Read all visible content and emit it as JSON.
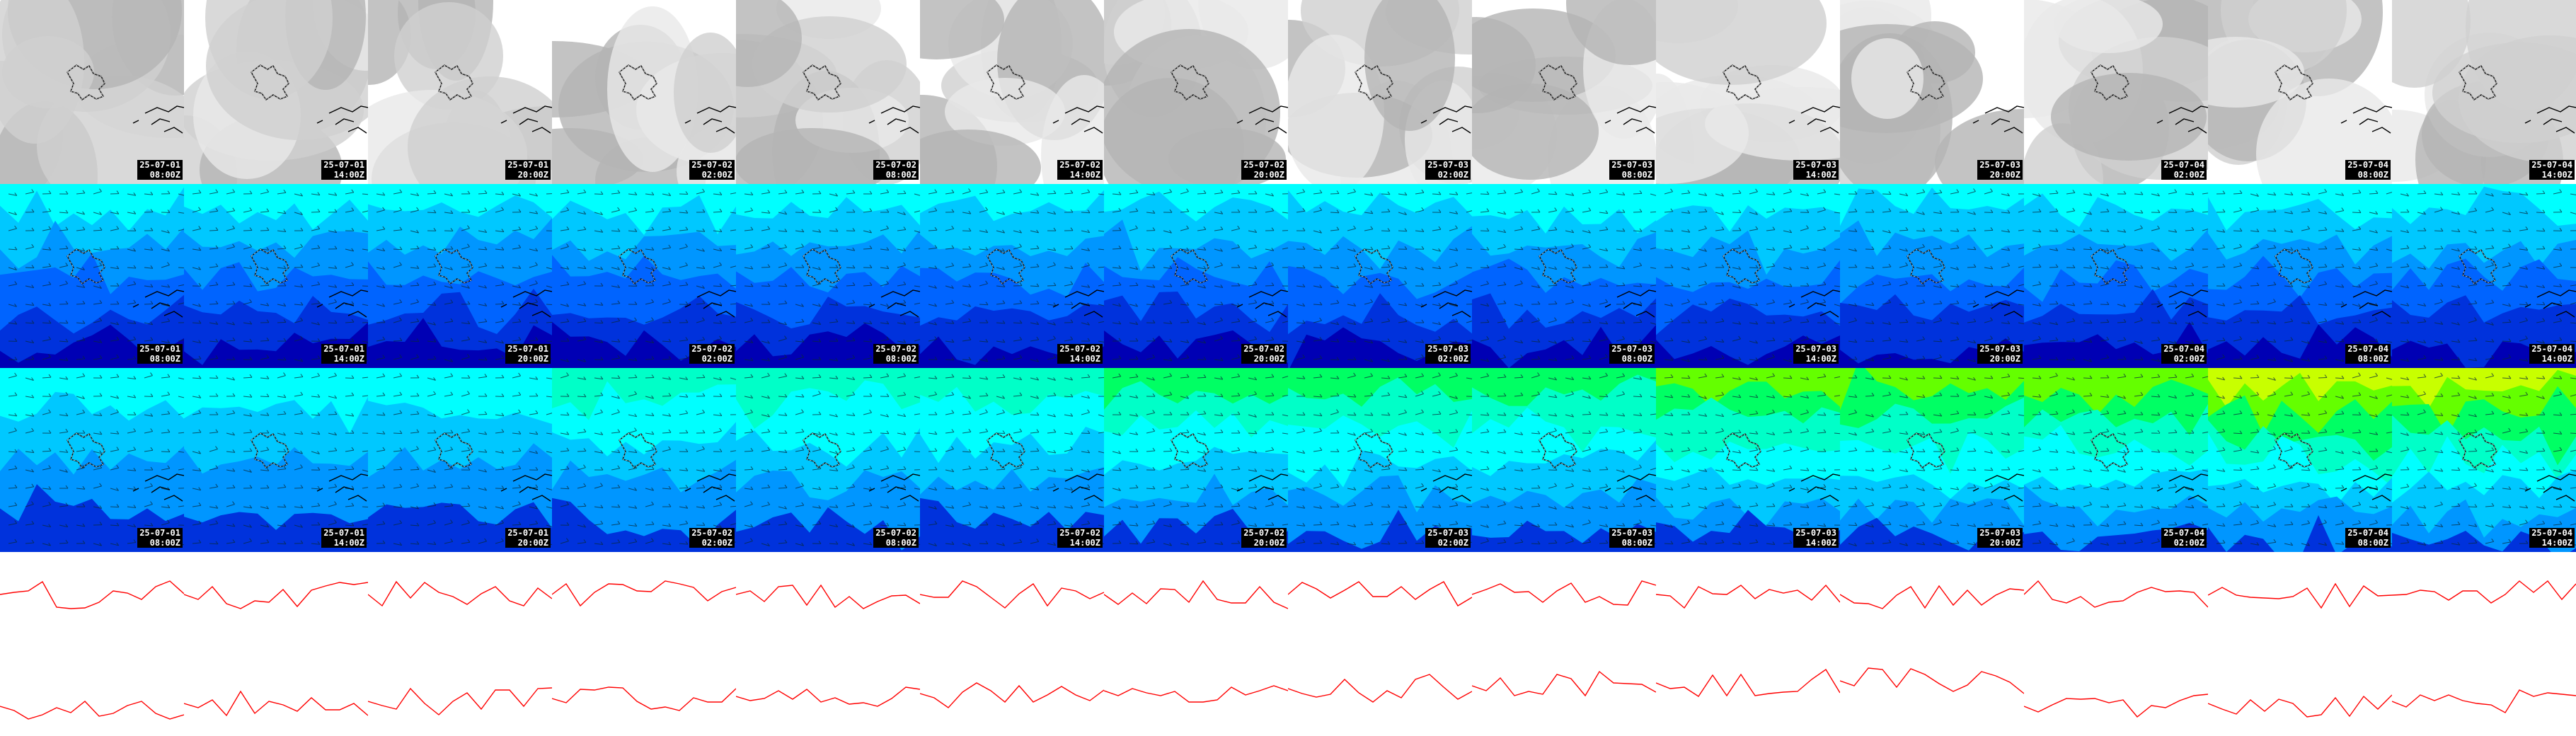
{
  "rows": [
    {
      "name": "cloud-cover",
      "kind": "gray"
    },
    {
      "name": "wind-low",
      "kind": "blue"
    },
    {
      "name": "wind-high",
      "kind": "green"
    },
    {
      "name": "pressure",
      "kind": "red"
    }
  ],
  "columns": [
    {
      "date": "25-07-01",
      "time": "08:00Z"
    },
    {
      "date": "25-07-01",
      "time": "14:00Z"
    },
    {
      "date": "25-07-01",
      "time": "20:00Z"
    },
    {
      "date": "25-07-02",
      "time": "02:00Z"
    },
    {
      "date": "25-07-02",
      "time": "08:00Z"
    },
    {
      "date": "25-07-02",
      "time": "14:00Z"
    },
    {
      "date": "25-07-02",
      "time": "20:00Z"
    },
    {
      "date": "25-07-03",
      "time": "02:00Z"
    },
    {
      "date": "25-07-03",
      "time": "08:00Z"
    },
    {
      "date": "25-07-03",
      "time": "14:00Z"
    },
    {
      "date": "25-07-03",
      "time": "20:00Z"
    },
    {
      "date": "25-07-04",
      "time": "02:00Z"
    },
    {
      "date": "25-07-04",
      "time": "08:00Z"
    },
    {
      "date": "25-07-04",
      "time": "14:00Z"
    }
  ],
  "colors": {
    "cloud": [
      "#ffffff",
      "#e9e9e9",
      "#cfcfcf",
      "#b4b4b4"
    ],
    "wind_blue": [
      "#00ffff",
      "#00c8ff",
      "#0096ff",
      "#0064ff",
      "#0032dc",
      "#0000b4"
    ],
    "wind_green": [
      "#c8ff00",
      "#64ff00",
      "#00ff64",
      "#00ffc8",
      "#00ffff",
      "#00c8ff",
      "#0096ff",
      "#0032dc"
    ],
    "isobar": "#ff0000",
    "coast": "#000000"
  }
}
